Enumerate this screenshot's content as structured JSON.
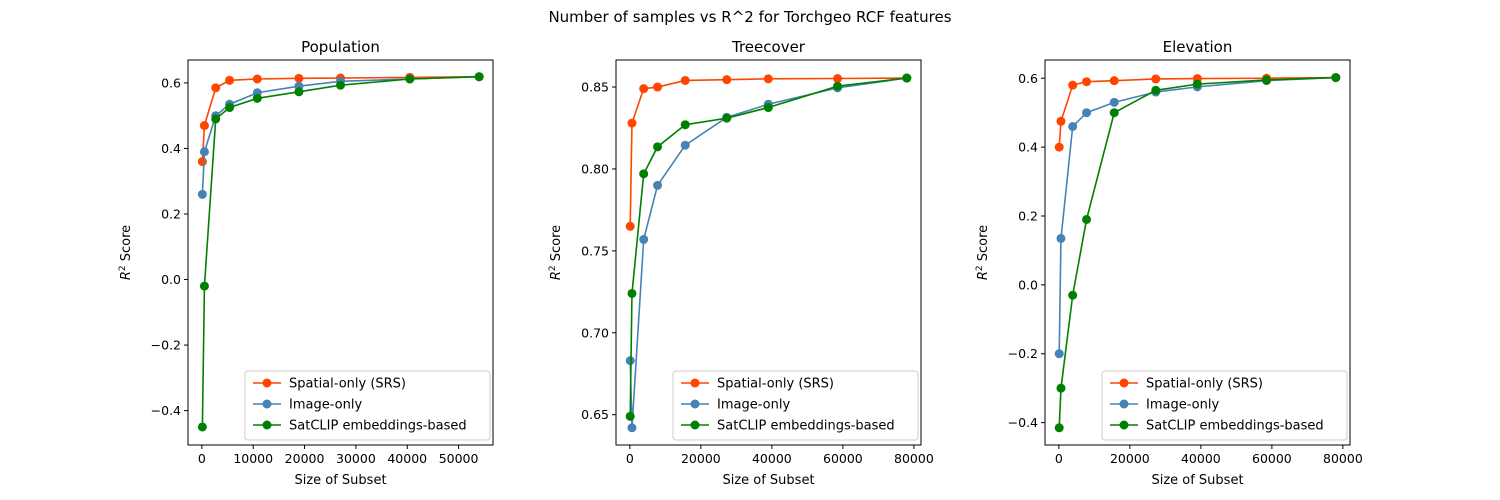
{
  "figure": {
    "title": "Number of samples vs R^2 for Torchgeo RCF features"
  },
  "legend": {
    "position": "lower-right",
    "entries": [
      "Spatial-only (SRS)",
      "Image-only",
      "SatCLIP embeddings-based"
    ]
  },
  "colors": {
    "Spatial-only (SRS)": "#ff4500",
    "Image-only": "#4682b4",
    "SatCLIP embeddings-based": "#008000"
  },
  "chart_data": [
    {
      "type": "line",
      "title": "Population",
      "xlabel": "Size of Subset",
      "ylabel": "R2 Score",
      "xlim": [
        -2700,
        56700
      ],
      "ylim": [
        -0.505,
        0.67
      ],
      "xticks": [
        0,
        10000,
        20000,
        30000,
        40000,
        50000
      ],
      "yticks": [
        -0.4,
        -0.2,
        0.0,
        0.2,
        0.4,
        0.6
      ],
      "xtick_labels": [
        "0",
        "10000",
        "20000",
        "30000",
        "40000",
        "50000"
      ],
      "ytick_labels": [
        "−0.4",
        "−0.2",
        "0.0",
        "0.2",
        "0.4",
        "0.6"
      ],
      "grid": false,
      "series": [
        {
          "name": "Spatial-only (SRS)",
          "x": [
            100,
            500,
            2700,
            5400,
            10800,
            18900,
            27000,
            40500,
            54000
          ],
          "y": [
            0.36,
            0.47,
            0.585,
            0.608,
            0.612,
            0.614,
            0.615,
            0.617,
            0.619
          ]
        },
        {
          "name": "Image-only",
          "x": [
            100,
            500,
            2700,
            5400,
            10800,
            18900,
            27000,
            40500,
            54000
          ],
          "y": [
            0.26,
            0.39,
            0.5,
            0.535,
            0.57,
            0.59,
            0.605,
            0.612,
            0.619
          ]
        },
        {
          "name": "SatCLIP embeddings-based",
          "x": [
            100,
            500,
            2700,
            5400,
            10800,
            18900,
            27000,
            40500,
            54000
          ],
          "y": [
            -0.45,
            -0.02,
            0.49,
            0.525,
            0.553,
            0.573,
            0.593,
            0.612,
            0.619
          ]
        }
      ]
    },
    {
      "type": "line",
      "title": "Treecover",
      "xlabel": "Size of Subset",
      "ylabel": "R2 Score",
      "xlim": [
        -3900,
        82000
      ],
      "ylim": [
        0.6315,
        0.8665
      ],
      "xticks": [
        0,
        20000,
        40000,
        60000,
        80000
      ],
      "yticks": [
        0.65,
        0.7,
        0.75,
        0.8,
        0.85
      ],
      "xtick_labels": [
        "0",
        "20000",
        "40000",
        "60000",
        "80000"
      ],
      "ytick_labels": [
        "0.65",
        "0.70",
        "0.75",
        "0.80",
        "0.85"
      ],
      "grid": false,
      "series": [
        {
          "name": "Spatial-only (SRS)",
          "x": [
            100,
            600,
            3900,
            7800,
            15600,
            27300,
            39000,
            58500,
            78000
          ],
          "y": [
            0.765,
            0.828,
            0.849,
            0.85,
            0.854,
            0.8545,
            0.855,
            0.8552,
            0.8555
          ]
        },
        {
          "name": "Image-only",
          "x": [
            100,
            600,
            3900,
            7800,
            15600,
            27300,
            39000,
            58500,
            78000
          ],
          "y": [
            0.683,
            0.642,
            0.757,
            0.79,
            0.8145,
            0.8315,
            0.8395,
            0.8495,
            0.8555
          ]
        },
        {
          "name": "SatCLIP embeddings-based",
          "x": [
            100,
            600,
            3900,
            7800,
            15600,
            27300,
            39000,
            58500,
            78000
          ],
          "y": [
            0.649,
            0.724,
            0.797,
            0.8135,
            0.827,
            0.831,
            0.8375,
            0.8505,
            0.8555
          ]
        }
      ]
    },
    {
      "type": "line",
      "title": "Elevation",
      "xlabel": "Size of Subset",
      "ylabel": "R2 Score",
      "xlim": [
        -3900,
        82000
      ],
      "ylim": [
        -0.465,
        0.653
      ],
      "xticks": [
        0,
        20000,
        40000,
        60000,
        80000
      ],
      "yticks": [
        -0.4,
        -0.2,
        0.0,
        0.2,
        0.4,
        0.6
      ],
      "xtick_labels": [
        "0",
        "20000",
        "40000",
        "60000",
        "80000"
      ],
      "ytick_labels": [
        "−0.4",
        "−0.2",
        "0.0",
        "0.2",
        "0.4",
        "0.6"
      ],
      "grid": false,
      "series": [
        {
          "name": "Spatial-only (SRS)",
          "x": [
            100,
            600,
            3900,
            7800,
            15600,
            27300,
            39000,
            58500,
            78000
          ],
          "y": [
            0.4,
            0.475,
            0.58,
            0.59,
            0.593,
            0.598,
            0.599,
            0.6,
            0.602
          ]
        },
        {
          "name": "Image-only",
          "x": [
            100,
            600,
            3900,
            7800,
            15600,
            27300,
            39000,
            58500,
            78000
          ],
          "y": [
            -0.2,
            0.135,
            0.46,
            0.5,
            0.53,
            0.56,
            0.575,
            0.593,
            0.602
          ]
        },
        {
          "name": "SatCLIP embeddings-based",
          "x": [
            100,
            600,
            3900,
            7800,
            15600,
            27300,
            39000,
            58500,
            78000
          ],
          "y": [
            -0.415,
            -0.3,
            -0.03,
            0.19,
            0.5,
            0.565,
            0.583,
            0.595,
            0.602
          ]
        }
      ]
    }
  ]
}
